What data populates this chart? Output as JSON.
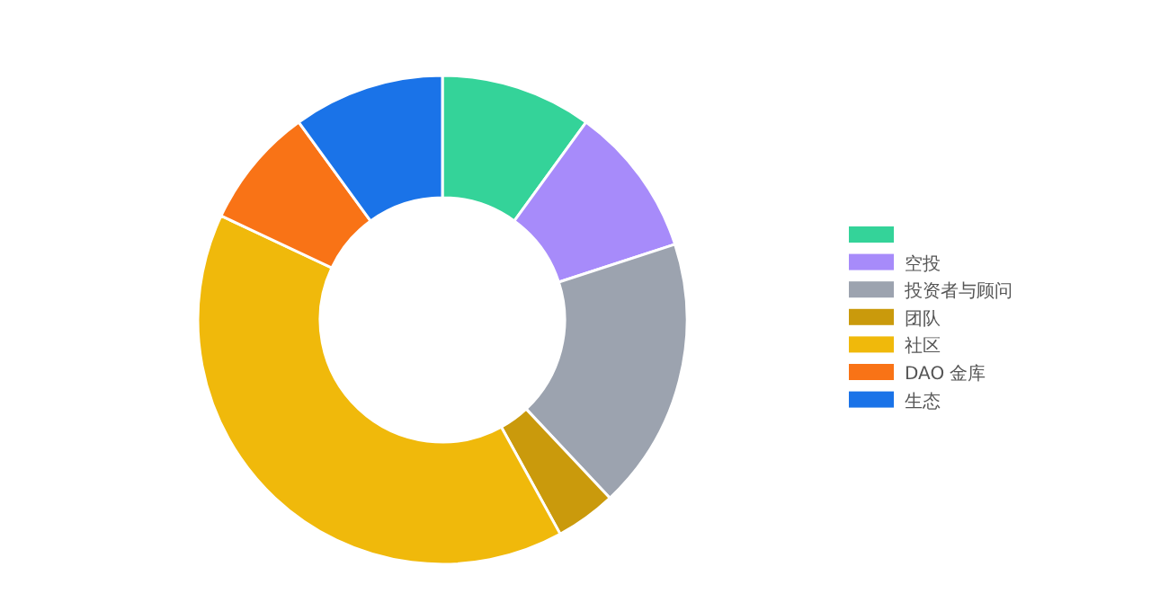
{
  "chart_data": {
    "type": "donut",
    "categories": [
      null,
      "空投",
      "投资者与顾问",
      "团队",
      "社区",
      "DAO 金库",
      "生态"
    ],
    "values": [
      10,
      10,
      18,
      4,
      40,
      8,
      10
    ],
    "colors": [
      "#34d399",
      "#a78bfa",
      "#9ca3af",
      "#ca9a0c",
      "#f0b90b",
      "#f97316",
      "#1a73e8"
    ],
    "legend": "right"
  }
}
